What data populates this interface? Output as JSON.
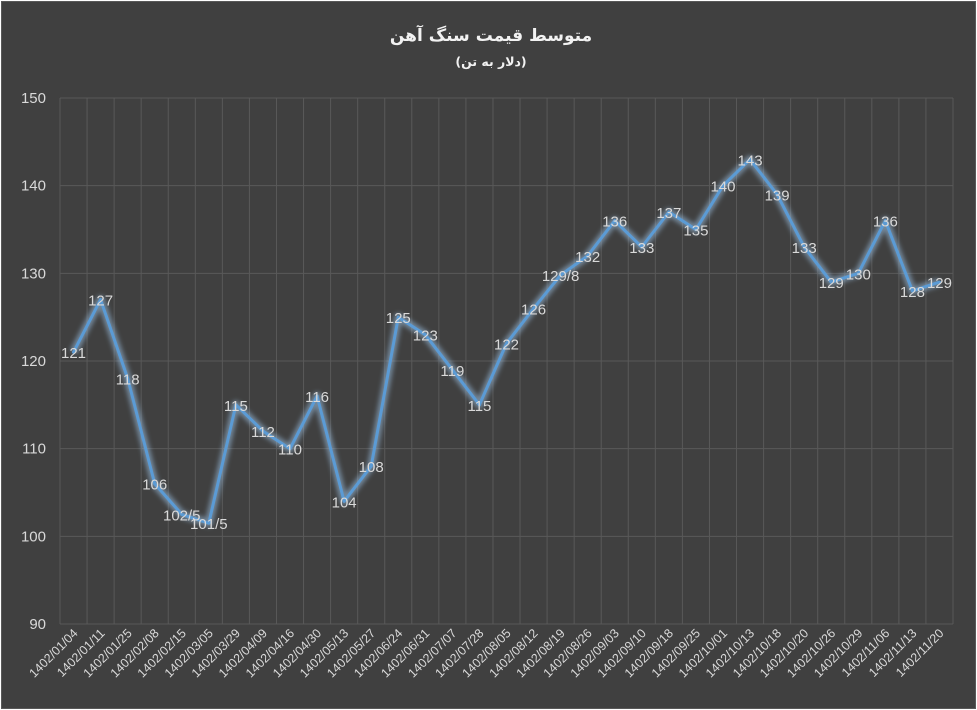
{
  "chart_data": {
    "type": "line",
    "title": "متوسط قیمت سنگ آهن",
    "subtitle": "(دلار به تن)",
    "xlabel": "",
    "ylabel": "",
    "ylim": [
      90,
      150
    ],
    "yticks": [
      "90",
      "100",
      "110",
      "120",
      "130",
      "140",
      "150"
    ],
    "grid": true,
    "legend": "none",
    "categories": [
      "1402/01/04",
      "1402/01/11",
      "1402/01/25",
      "1402/02/08",
      "1402/02/15",
      "1402/03/05",
      "1402/03/29",
      "1402/04/09",
      "1402/04/16",
      "1402/04/30",
      "1402/05/13",
      "1402/05/27",
      "1402/06/24",
      "1402/06/31",
      "1402/07/07",
      "1402/07/28",
      "1402/08/05",
      "1402/08/12",
      "1402/08/19",
      "1402/08/26",
      "1402/09/03",
      "1402/09/10",
      "1402/09/18",
      "1402/09/25",
      "1402/10/01",
      "1402/10/13",
      "1402/10/18",
      "1402/10/20",
      "1402/10/26",
      "1402/10/29",
      "1402/11/06",
      "1402/11/13",
      "1402/11/20"
    ],
    "values": [
      121,
      127,
      118,
      106,
      102.5,
      101.5,
      115,
      112,
      110,
      116,
      104,
      108,
      125,
      123,
      119,
      115,
      122,
      126,
      129.8,
      132,
      136,
      133,
      137,
      135,
      140,
      143,
      139,
      133,
      129,
      130,
      136,
      128,
      129
    ],
    "data_labels": [
      "121",
      "127",
      "118",
      "106",
      "102/5",
      "101/5",
      "115",
      "112",
      "110",
      "116",
      "104",
      "108",
      "125",
      "123",
      "119",
      "115",
      "122",
      "126",
      "129/8",
      "132",
      "136",
      "133",
      "137",
      "135",
      "140",
      "143",
      "139",
      "133",
      "129",
      "130",
      "136",
      "128",
      "129"
    ],
    "colors": {
      "background": "#404040",
      "line": "#5b9bd5",
      "glow": "#9dc3e6",
      "grid": "#595959",
      "text": "#d9d9d9"
    }
  }
}
